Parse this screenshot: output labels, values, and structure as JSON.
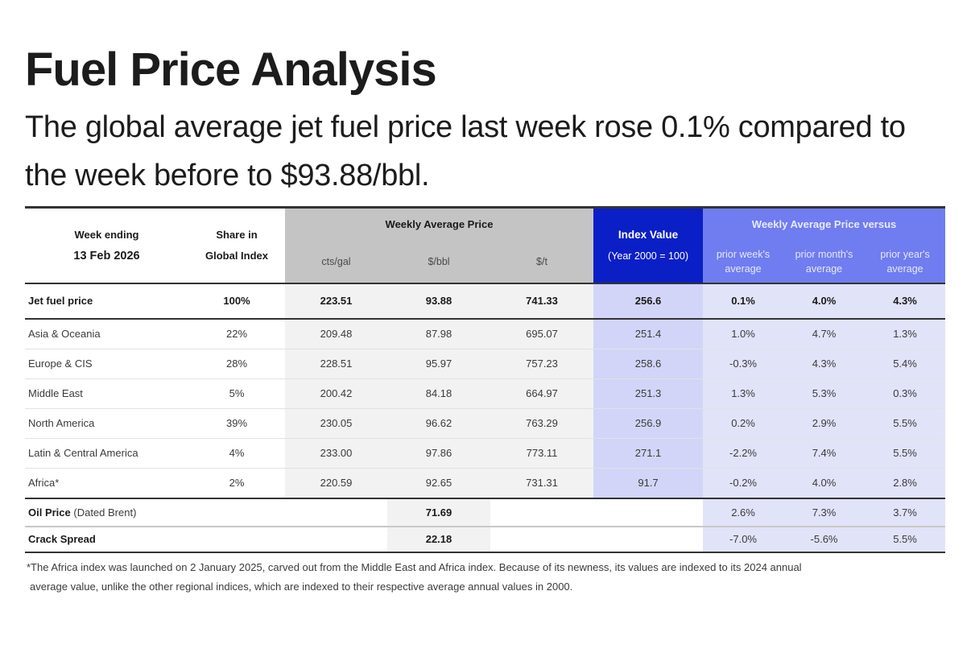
{
  "header": {
    "title": "Fuel Price Analysis",
    "subtitle": "The global average jet fuel price last week rose 0.1% compared to the week before to $93.88/bbl."
  },
  "table": {
    "week_ending_label": "Week ending",
    "week_ending_date": "13 Feb 2026",
    "share_label_line1": "Share in",
    "share_label_line2": "Global Index",
    "weekly_avg_label": "Weekly Average Price",
    "units": [
      "cts/gal",
      "$/bbl",
      "$/t"
    ],
    "index_label": "Index Value",
    "index_sublabel": "(Year 2000 = 100)",
    "versus_label": "Weekly Average Price versus",
    "versus_cols": [
      {
        "line1": "prior week's",
        "line2": "average"
      },
      {
        "line1": "prior month's",
        "line2": "average"
      },
      {
        "line1": "prior year's",
        "line2": "average"
      }
    ],
    "total": {
      "region": "Jet fuel price",
      "share": "100%",
      "cts_gal": "223.51",
      "usd_bbl": "93.88",
      "usd_t": "741.33",
      "index": "256.6",
      "vs_week": "0.1%",
      "vs_month": "4.0%",
      "vs_year": "4.3%"
    },
    "regions": [
      {
        "region": "Asia & Oceania",
        "share": "22%",
        "cts_gal": "209.48",
        "usd_bbl": "87.98",
        "usd_t": "695.07",
        "index": "251.4",
        "vs_week": "1.0%",
        "vs_month": "4.7%",
        "vs_year": "1.3%"
      },
      {
        "region": "Europe & CIS",
        "share": "28%",
        "cts_gal": "228.51",
        "usd_bbl": "95.97",
        "usd_t": "757.23",
        "index": "258.6",
        "vs_week": "-0.3%",
        "vs_month": "4.3%",
        "vs_year": "5.4%"
      },
      {
        "region": "Middle East",
        "share": "5%",
        "cts_gal": "200.42",
        "usd_bbl": "84.18",
        "usd_t": "664.97",
        "index": "251.3",
        "vs_week": "1.3%",
        "vs_month": "5.3%",
        "vs_year": "0.3%"
      },
      {
        "region": "North America",
        "share": "39%",
        "cts_gal": "230.05",
        "usd_bbl": "96.62",
        "usd_t": "763.29",
        "index": "256.9",
        "vs_week": "0.2%",
        "vs_month": "2.9%",
        "vs_year": "5.5%"
      },
      {
        "region": "Latin & Central America",
        "share": "4%",
        "cts_gal": "233.00",
        "usd_bbl": "97.86",
        "usd_t": "773.11",
        "index": "271.1",
        "vs_week": "-2.2%",
        "vs_month": "7.4%",
        "vs_year": "5.5%"
      },
      {
        "region": "Africa*",
        "share": "2%",
        "cts_gal": "220.59",
        "usd_bbl": "92.65",
        "usd_t": "731.31",
        "index": "91.7",
        "vs_week": "-0.2%",
        "vs_month": "4.0%",
        "vs_year": "2.8%"
      }
    ],
    "oil_price": {
      "label": "Oil Price",
      "label_paren": "(Dated Brent)",
      "usd_bbl": "71.69",
      "vs_week": "2.6%",
      "vs_month": "7.3%",
      "vs_year": "3.7%"
    },
    "crack_spread": {
      "label": "Crack Spread",
      "usd_bbl": "22.18",
      "vs_week": "-7.0%",
      "vs_month": "-5.6%",
      "vs_year": "5.5%"
    }
  },
  "footnote": {
    "line1": "*The Africa index was launched on 2 January 2025, carved out from the Middle East and Africa index. Because of its newness, its values are indexed  to its 2024 annual",
    "line2": "average value, unlike the other regional indices, which are indexed to their respective average annual values in 2000."
  },
  "colors": {
    "index_header": "#0b1fc6",
    "versus_header": "#6f7df0",
    "index_cell": "#d2d5f7",
    "versus_cell": "#e1e3f9",
    "price_header": "#c4c4c4"
  }
}
